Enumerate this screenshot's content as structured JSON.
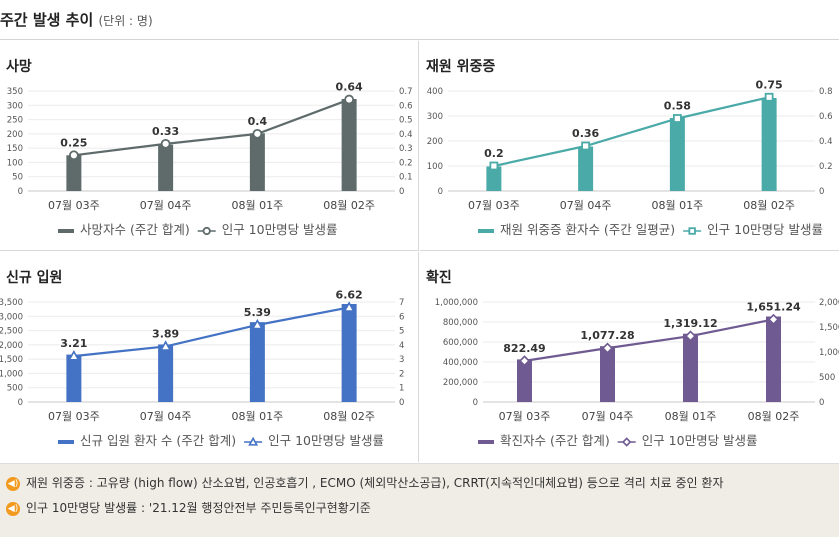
{
  "header": {
    "title": "주간 발생 추이",
    "unit": "(단위 : 명)"
  },
  "colors": {
    "death": "#5f6b6b",
    "severe": "#4aaaa8",
    "admit": "#4472c4",
    "confirm": "#6f5a91",
    "icon": "#f29a1f"
  },
  "chart_data": [
    {
      "type": "bar+line",
      "title": "사망",
      "categories": [
        "07월 03주",
        "07월 04주",
        "08월 01주",
        "08월 02주"
      ],
      "bar_values": [
        125,
        162,
        202,
        322
      ],
      "rate_values": [
        0.25,
        0.33,
        0.4,
        0.64
      ],
      "rate_labels": [
        "0.25",
        "0.33",
        "0.4",
        "0.64"
      ],
      "ylim_left": [
        0,
        350
      ],
      "yticks_left": [
        "0",
        "50",
        "100",
        "150",
        "200",
        "250",
        "300",
        "350"
      ],
      "ylim_right": [
        0,
        0.7
      ],
      "yticks_right": [
        "0",
        "0.1",
        "0.2",
        "0.3",
        "0.4",
        "0.5",
        "0.6",
        "0.7"
      ],
      "legend_bar": "사망자수 (주간 합계)",
      "legend_line": "인구 10만명당 발생률",
      "marker": "circle",
      "color": "#5f6b6b"
    },
    {
      "type": "bar+line",
      "title": "재원 위중증",
      "categories": [
        "07월 03주",
        "07월 04주",
        "08월 01주",
        "08월 02주"
      ],
      "bar_values": [
        98,
        178,
        292,
        372
      ],
      "rate_values": [
        0.2,
        0.36,
        0.58,
        0.75
      ],
      "rate_labels": [
        "0.2",
        "0.36",
        "0.58",
        "0.75"
      ],
      "ylim_left": [
        0,
        400
      ],
      "yticks_left": [
        "0",
        "100",
        "200",
        "300",
        "400"
      ],
      "ylim_right": [
        0,
        0.8
      ],
      "yticks_right": [
        "0",
        "0.2",
        "0.4",
        "0.6",
        "0.8"
      ],
      "legend_bar": "재원 위중증 환자수 (주간 일평균)",
      "legend_line": "인구 10만명당 발생률",
      "marker": "square",
      "color": "#4aaaa8"
    },
    {
      "type": "bar+line",
      "title": "신규 입원",
      "categories": [
        "07월 03주",
        "07월 04주",
        "08월 01주",
        "08월 02주"
      ],
      "bar_values": [
        1660,
        2015,
        2795,
        3430
      ],
      "rate_values": [
        3.21,
        3.89,
        5.39,
        6.62
      ],
      "rate_labels": [
        "3.21",
        "3.89",
        "5.39",
        "6.62"
      ],
      "ylim_left": [
        0,
        3500
      ],
      "yticks_left": [
        "0",
        "500",
        "1,000",
        "1,500",
        "2,000",
        "2,500",
        "3,000",
        "3,500"
      ],
      "ylim_right": [
        0,
        7
      ],
      "yticks_right": [
        "0",
        "1",
        "2",
        "3",
        "4",
        "5",
        "6",
        "7"
      ],
      "legend_bar": "신규 입원 환자 수 (주간 합계)",
      "legend_line": "인구 10만명당 발생률",
      "marker": "triangle",
      "color": "#4472c4"
    },
    {
      "type": "bar+line",
      "title": "확진",
      "categories": [
        "07월 03주",
        "07월 04주",
        "08월 01주",
        "08월 02주"
      ],
      "bar_values": [
        426000,
        558000,
        683000,
        855000
      ],
      "rate_values": [
        822.49,
        1077.28,
        1319.12,
        1651.24
      ],
      "rate_labels": [
        "822.49",
        "1,077.28",
        "1,319.12",
        "1,651.24"
      ],
      "ylim_left": [
        0,
        1000000
      ],
      "yticks_left": [
        "0",
        "200,000",
        "400,000",
        "600,000",
        "800,000",
        "1,000,000"
      ],
      "ylim_right": [
        0,
        2000
      ],
      "yticks_right": [
        "0",
        "500",
        "1,000",
        "1,500",
        "2,000"
      ],
      "legend_bar": "확진자수 (주간 합계)",
      "legend_line": "인구 10만명당 발생률",
      "marker": "diamond",
      "color": "#6f5a91"
    }
  ],
  "footer": {
    "note1": "재원 위중증 : 고유량 (high flow) 산소요법, 인공호흡기 , ECMO (체외막산소공급), CRRT(지속적인대체요법) 등으로 격리 치료 중인 환자",
    "note2": "인구 10만명당 발생률 : '21.12월 행정안전부 주민등록인구현황기준",
    "icon_glyph": "◀)"
  }
}
